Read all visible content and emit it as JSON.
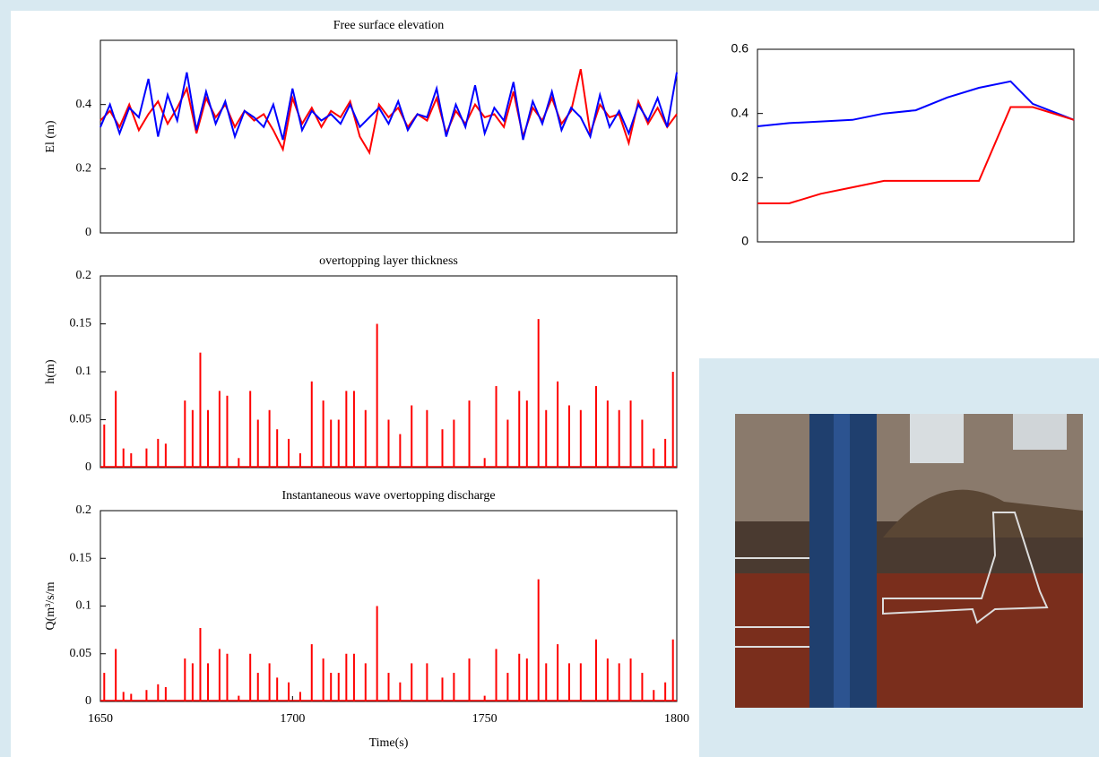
{
  "chart_data": [
    {
      "type": "line",
      "title": "Free surface elevation",
      "ylabel": "El (m)",
      "xlim": [
        1650,
        1800
      ],
      "ylim": [
        0,
        0.6
      ],
      "yticks": [
        0,
        0.2,
        0.4
      ],
      "x": [
        1650,
        1652.5,
        1655,
        1657.5,
        1660,
        1662.5,
        1665,
        1667.5,
        1670,
        1672.5,
        1675,
        1677.5,
        1680,
        1682.5,
        1685,
        1687.5,
        1690,
        1692.5,
        1695,
        1697.5,
        1700,
        1702.5,
        1705,
        1707.5,
        1710,
        1712.5,
        1715,
        1717.5,
        1720,
        1722.5,
        1725,
        1727.5,
        1730,
        1732.5,
        1735,
        1737.5,
        1740,
        1742.5,
        1745,
        1747.5,
        1750,
        1752.5,
        1755,
        1757.5,
        1760,
        1762.5,
        1765,
        1767.5,
        1770,
        1772.5,
        1775,
        1777.5,
        1780,
        1782.5,
        1785,
        1787.5,
        1790,
        1792.5,
        1795,
        1797.5,
        1800
      ],
      "series": [
        {
          "color": "#ff0000",
          "values": [
            0.35,
            0.38,
            0.33,
            0.4,
            0.32,
            0.37,
            0.41,
            0.34,
            0.39,
            0.45,
            0.31,
            0.42,
            0.36,
            0.4,
            0.33,
            0.38,
            0.35,
            0.37,
            0.32,
            0.26,
            0.42,
            0.34,
            0.39,
            0.33,
            0.38,
            0.36,
            0.41,
            0.3,
            0.25,
            0.4,
            0.36,
            0.39,
            0.33,
            0.37,
            0.35,
            0.42,
            0.31,
            0.38,
            0.34,
            0.4,
            0.36,
            0.37,
            0.33,
            0.44,
            0.3,
            0.39,
            0.35,
            0.42,
            0.34,
            0.38,
            0.51,
            0.31,
            0.4,
            0.36,
            0.37,
            0.28,
            0.41,
            0.34,
            0.39,
            0.33,
            0.37
          ]
        },
        {
          "color": "#0000ff",
          "values": [
            0.33,
            0.4,
            0.31,
            0.39,
            0.36,
            0.48,
            0.3,
            0.43,
            0.35,
            0.5,
            0.32,
            0.44,
            0.34,
            0.41,
            0.3,
            0.38,
            0.36,
            0.33,
            0.4,
            0.29,
            0.45,
            0.32,
            0.38,
            0.35,
            0.37,
            0.34,
            0.4,
            0.33,
            0.36,
            0.39,
            0.34,
            0.41,
            0.32,
            0.37,
            0.36,
            0.45,
            0.3,
            0.4,
            0.33,
            0.46,
            0.31,
            0.39,
            0.35,
            0.47,
            0.29,
            0.41,
            0.34,
            0.44,
            0.32,
            0.39,
            0.36,
            0.3,
            0.43,
            0.33,
            0.38,
            0.31,
            0.4,
            0.35,
            0.42,
            0.33,
            0.5
          ]
        }
      ]
    },
    {
      "type": "stem",
      "title": "overtopping layer thickness",
      "ylabel": "h(m)",
      "xlim": [
        1650,
        1800
      ],
      "ylim": [
        0,
        0.2
      ],
      "yticks": [
        0,
        0.05,
        0.1,
        0.15,
        0.2
      ],
      "color": "#ff0000",
      "x": [
        1651,
        1654,
        1656,
        1658,
        1662,
        1665,
        1667,
        1672,
        1674,
        1676,
        1678,
        1681,
        1683,
        1686,
        1689,
        1691,
        1694,
        1696,
        1699,
        1702,
        1705,
        1708,
        1710,
        1712,
        1714,
        1716,
        1719,
        1722,
        1725,
        1728,
        1731,
        1735,
        1739,
        1742,
        1746,
        1750,
        1753,
        1756,
        1759,
        1761,
        1764,
        1766,
        1769,
        1772,
        1775,
        1779,
        1782,
        1785,
        1788,
        1791,
        1794,
        1797,
        1799
      ],
      "values": [
        0.045,
        0.08,
        0.02,
        0.015,
        0.02,
        0.03,
        0.025,
        0.07,
        0.06,
        0.12,
        0.06,
        0.08,
        0.075,
        0.01,
        0.08,
        0.05,
        0.06,
        0.04,
        0.03,
        0.015,
        0.09,
        0.07,
        0.05,
        0.05,
        0.08,
        0.08,
        0.06,
        0.15,
        0.05,
        0.035,
        0.065,
        0.06,
        0.04,
        0.05,
        0.07,
        0.01,
        0.085,
        0.05,
        0.08,
        0.07,
        0.155,
        0.06,
        0.09,
        0.065,
        0.06,
        0.085,
        0.07,
        0.06,
        0.07,
        0.05,
        0.02,
        0.03,
        0.1
      ]
    },
    {
      "type": "stem",
      "title": "Instantaneous wave overtopping discharge",
      "ylabel": "Q(m³/s/m",
      "xlabel": "Time(s)",
      "xlim": [
        1650,
        1800
      ],
      "ylim": [
        0,
        0.2
      ],
      "yticks": [
        0,
        0.05,
        0.1,
        0.15,
        0.2
      ],
      "xticks": [
        1650,
        1700,
        1750,
        1800
      ],
      "color": "#ff0000",
      "x": [
        1651,
        1654,
        1656,
        1658,
        1662,
        1665,
        1667,
        1672,
        1674,
        1676,
        1678,
        1681,
        1683,
        1686,
        1689,
        1691,
        1694,
        1696,
        1699,
        1702,
        1705,
        1708,
        1710,
        1712,
        1714,
        1716,
        1719,
        1722,
        1725,
        1728,
        1731,
        1735,
        1739,
        1742,
        1746,
        1750,
        1753,
        1756,
        1759,
        1761,
        1764,
        1766,
        1769,
        1772,
        1775,
        1779,
        1782,
        1785,
        1788,
        1791,
        1794,
        1797,
        1799
      ],
      "values": [
        0.03,
        0.055,
        0.01,
        0.008,
        0.012,
        0.018,
        0.015,
        0.045,
        0.04,
        0.077,
        0.04,
        0.055,
        0.05,
        0.006,
        0.05,
        0.03,
        0.04,
        0.025,
        0.02,
        0.01,
        0.06,
        0.045,
        0.03,
        0.03,
        0.05,
        0.05,
        0.04,
        0.1,
        0.03,
        0.02,
        0.04,
        0.04,
        0.025,
        0.03,
        0.045,
        0.006,
        0.055,
        0.03,
        0.05,
        0.045,
        0.128,
        0.04,
        0.06,
        0.04,
        0.04,
        0.065,
        0.045,
        0.04,
        0.045,
        0.03,
        0.012,
        0.02,
        0.065
      ]
    },
    {
      "type": "line",
      "xlim": [
        0,
        10
      ],
      "ylim": [
        0,
        0.6
      ],
      "yticks": [
        0,
        0.2,
        0.4,
        0.6
      ],
      "x": [
        0,
        1,
        2,
        3,
        4,
        5,
        6,
        7,
        8,
        8.7,
        10
      ],
      "series": [
        {
          "color": "#0000ff",
          "values": [
            0.36,
            0.37,
            0.375,
            0.38,
            0.4,
            0.41,
            0.45,
            0.48,
            0.5,
            0.43,
            0.38
          ]
        },
        {
          "color": "#ff0000",
          "values": [
            0.12,
            0.12,
            0.15,
            0.17,
            0.19,
            0.19,
            0.19,
            0.19,
            0.42,
            0.42,
            0.38
          ]
        }
      ]
    }
  ]
}
